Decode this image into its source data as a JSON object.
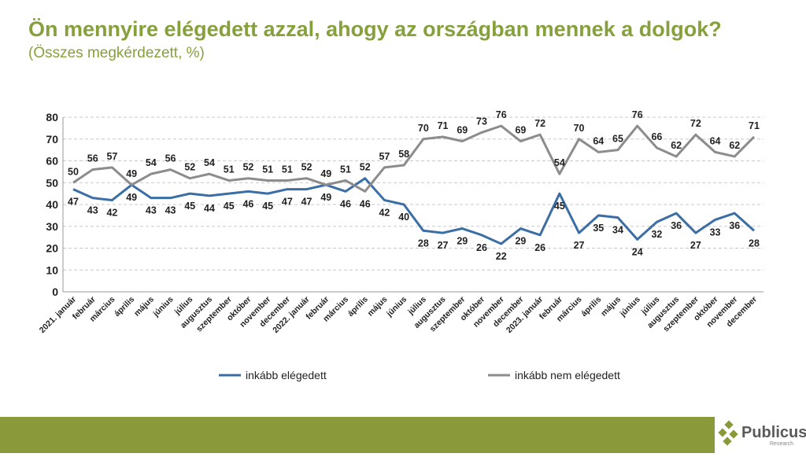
{
  "title": "Ön mennyire elégedett azzal, ahogy az országban mennek a dolgok?",
  "subtitle": "(Összes megkérdezett, %)",
  "logo": {
    "name": "Publicus",
    "sub": "Research"
  },
  "chart_data": {
    "type": "line",
    "ylim": [
      0,
      80
    ],
    "yticks": [
      0,
      10,
      20,
      30,
      40,
      50,
      60,
      70,
      80
    ],
    "grid": true,
    "legend_placement": "bottom",
    "categories": [
      "2021. január",
      "február",
      "március",
      "április",
      "május",
      "június",
      "július",
      "augusztus",
      "szeptember",
      "október",
      "november",
      "december",
      "2022. január",
      "február",
      "március",
      "április",
      "május",
      "június",
      "július",
      "augusztus",
      "szeptember",
      "október",
      "november",
      "december",
      "2023. január",
      "február",
      "március",
      "április",
      "május",
      "június",
      "július",
      "augusztus",
      "szeptember",
      "október",
      "november",
      "december"
    ],
    "series": [
      {
        "name": "inkább elégedett",
        "color": "#3a6ea5",
        "values": [
          47,
          43,
          42,
          49,
          43,
          43,
          45,
          44,
          45,
          46,
          45,
          47,
          47,
          49,
          46,
          52,
          42,
          40,
          28,
          27,
          29,
          26,
          22,
          29,
          26,
          45,
          27,
          35,
          34,
          24,
          32,
          36,
          27,
          33,
          36,
          28
        ]
      },
      {
        "name": "inkább nem elégedett",
        "color": "#8c8c8c",
        "values": [
          50,
          56,
          57,
          49,
          54,
          56,
          52,
          54,
          51,
          52,
          51,
          51,
          52,
          49,
          51,
          46,
          57,
          58,
          70,
          71,
          69,
          73,
          76,
          69,
          72,
          54,
          70,
          64,
          65,
          76,
          66,
          62,
          72,
          64,
          62,
          71
        ]
      }
    ]
  }
}
